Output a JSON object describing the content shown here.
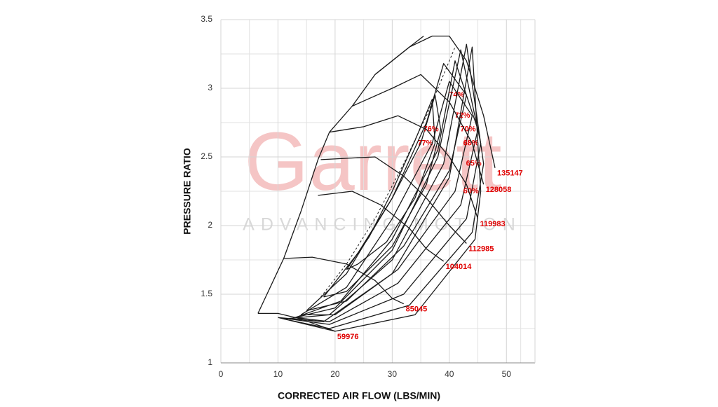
{
  "chart_data": {
    "type": "line",
    "x_label": "CORRECTED AIR FLOW (LBS/MIN)",
    "y_label": "PRESSURE RATIO",
    "watermark": {
      "title": "Garrett",
      "subtitle": "ADVANCING MOTION"
    },
    "xlim": [
      0,
      55
    ],
    "ylim": [
      1,
      3.5
    ],
    "xticks": [
      0,
      10,
      20,
      30,
      40,
      50
    ],
    "yticks": [
      1,
      1.5,
      2,
      2.5,
      3,
      3.5
    ],
    "grid": true,
    "color": "#1a1a1a",
    "label_color": "#e00000",
    "surge_line": {
      "x": [
        6.5,
        11,
        14,
        17,
        19,
        23,
        27,
        33,
        35.5
      ],
      "y": [
        1.36,
        1.76,
        2.1,
        2.48,
        2.68,
        2.87,
        3.1,
        3.3,
        3.38
      ]
    },
    "dashed_line": {
      "x": [
        17.5,
        22,
        27,
        32,
        36,
        39,
        41
      ],
      "y": [
        1.48,
        1.72,
        2.05,
        2.45,
        2.8,
        3.1,
        3.3
      ]
    },
    "speed_lines": [
      {
        "name": "59976",
        "x": [
          6.5,
          10,
          14,
          18,
          20
        ],
        "y": [
          1.36,
          1.36,
          1.32,
          1.26,
          1.23
        ]
      },
      {
        "name": "85045",
        "x": [
          11,
          16,
          22,
          27,
          30,
          32
        ],
        "y": [
          1.76,
          1.77,
          1.72,
          1.6,
          1.47,
          1.43
        ]
      },
      {
        "name": "104014",
        "x": [
          17,
          23,
          28,
          33,
          36,
          39
        ],
        "y": [
          2.22,
          2.25,
          2.15,
          1.98,
          1.83,
          1.74
        ]
      },
      {
        "name": "112985",
        "x": [
          17.5,
          22,
          27,
          32,
          36,
          40,
          43
        ],
        "y": [
          2.48,
          2.49,
          2.5,
          2.36,
          2.2,
          2.0,
          1.87
        ]
      },
      {
        "name": "119983",
        "x": [
          19,
          25,
          31,
          36,
          40,
          43,
          45
        ],
        "y": [
          2.68,
          2.72,
          2.8,
          2.7,
          2.5,
          2.3,
          2.05
        ]
      },
      {
        "name": "128058",
        "x": [
          23,
          30,
          35,
          40,
          44,
          46
        ],
        "y": [
          2.87,
          3.0,
          3.1,
          2.9,
          2.6,
          2.3
        ]
      },
      {
        "name": "135147",
        "x": [
          27,
          33,
          37,
          40,
          43,
          46,
          48
        ],
        "y": [
          3.1,
          3.3,
          3.38,
          3.38,
          3.2,
          2.8,
          2.42
        ]
      }
    ],
    "efficiency_islands": [
      {
        "name": "77%",
        "x": [
          22,
          26,
          30,
          34,
          37,
          37.5,
          34,
          29,
          24,
          22
        ],
        "y": [
          1.68,
          1.92,
          2.25,
          2.62,
          2.92,
          2.6,
          2.2,
          1.88,
          1.72,
          1.68
        ]
      },
      {
        "name": "76%",
        "x": [
          18,
          24,
          30,
          35,
          37.5,
          38.5,
          36,
          30,
          22,
          18
        ],
        "y": [
          1.48,
          1.8,
          2.2,
          2.6,
          2.95,
          2.7,
          2.3,
          1.85,
          1.52,
          1.48
        ]
      },
      {
        "name": "74%",
        "x": [
          15,
          22,
          30,
          36,
          39,
          43,
          40,
          32,
          22,
          15
        ],
        "y": [
          1.38,
          1.65,
          2.2,
          2.75,
          3.18,
          2.95,
          2.4,
          1.85,
          1.45,
          1.38
        ]
      },
      {
        "name": "72%",
        "x": [
          14,
          22,
          30,
          37,
          40,
          44,
          41,
          31,
          20,
          14
        ],
        "y": [
          1.35,
          1.55,
          2.05,
          2.6,
          3.05,
          2.8,
          2.25,
          1.68,
          1.35,
          1.35
        ]
      },
      {
        "name": "70%",
        "x": [
          13,
          21,
          30,
          38,
          41,
          45,
          42,
          31,
          19,
          13
        ],
        "y": [
          1.33,
          1.45,
          1.9,
          2.55,
          3.2,
          2.7,
          2.15,
          1.58,
          1.3,
          1.33
        ]
      },
      {
        "name": "68%",
        "x": [
          12,
          20,
          30,
          38,
          42,
          45.5,
          43,
          32,
          19,
          12
        ],
        "y": [
          1.32,
          1.4,
          1.82,
          2.5,
          3.28,
          2.6,
          2.05,
          1.5,
          1.28,
          1.32
        ]
      },
      {
        "name": "65%",
        "x": [
          11,
          19,
          30,
          39,
          43,
          46,
          44,
          33,
          19,
          11
        ],
        "y": [
          1.32,
          1.35,
          1.75,
          2.45,
          3.32,
          2.45,
          1.95,
          1.42,
          1.25,
          1.32
        ]
      },
      {
        "name": "60%",
        "x": [
          10,
          18,
          30,
          40,
          44,
          45.5,
          44.5,
          34,
          20,
          10
        ],
        "y": [
          1.33,
          1.3,
          1.65,
          2.35,
          3.3,
          2.25,
          1.9,
          1.35,
          1.23,
          1.33
        ]
      }
    ]
  }
}
